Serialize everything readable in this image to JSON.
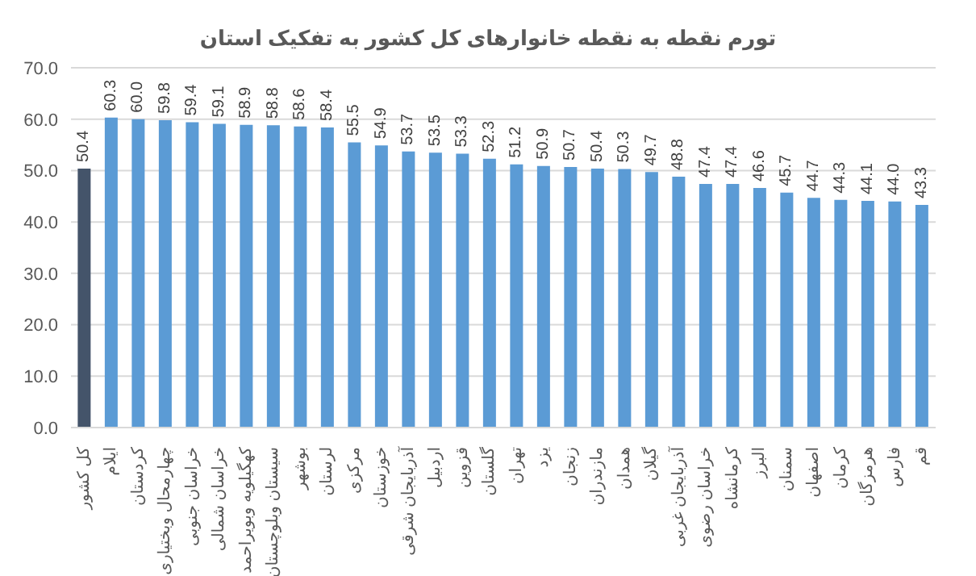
{
  "chart_data": {
    "type": "bar",
    "title": "تورم  نقطه به نقطه خانوارهای کل کشور به تفکیک استان",
    "categories": [
      "کل کشور",
      "ایلام",
      "کردستان",
      "چهارمحال وبختیاری",
      "خراسان جنوبی",
      "خراسان شمالی",
      "کهگیلویه وبویراحمد",
      "سیستان وبلوچستان",
      "بوشهر",
      "لرستان",
      "مرکزی",
      "خوزستان",
      "آذربایجان شرقی",
      "اردبیل",
      "قزوین",
      "گلستان",
      "تهران",
      "یزد",
      "زنجان",
      "مازندران",
      "همدان",
      "گیلان",
      "آذربایجان غربی",
      "خراسان رضوی",
      "کرمانشاه",
      "البرز",
      "سمنان",
      "اصفهان",
      "کرمان",
      "هرمزگان",
      "فارس",
      "قم"
    ],
    "values": [
      50.4,
      60.3,
      60.0,
      59.8,
      59.4,
      59.1,
      58.9,
      58.8,
      58.6,
      58.4,
      55.5,
      54.9,
      53.7,
      53.5,
      53.3,
      52.3,
      51.2,
      50.9,
      50.7,
      50.4,
      50.3,
      49.7,
      48.8,
      47.4,
      47.4,
      46.6,
      45.7,
      44.7,
      44.3,
      44.1,
      44.0,
      43.3
    ],
    "value_labels": [
      "50.4",
      "60.3",
      "60.0",
      "59.8",
      "59.4",
      "59.1",
      "58.9",
      "58.8",
      "58.6",
      "58.4",
      "55.5",
      "54.9",
      "53.7",
      "53.5",
      "53.3",
      "52.3",
      "51.2",
      "50.9",
      "50.7",
      "50.4",
      "50.3",
      "49.7",
      "48.8",
      "47.4",
      "47.4",
      "46.6",
      "45.7",
      "44.7",
      "44.3",
      "44.1",
      "44.0",
      "43.3"
    ],
    "colors": [
      "#44546a",
      "#5b9bd5",
      "#5b9bd5",
      "#5b9bd5",
      "#5b9bd5",
      "#5b9bd5",
      "#5b9bd5",
      "#5b9bd5",
      "#5b9bd5",
      "#5b9bd5",
      "#5b9bd5",
      "#5b9bd5",
      "#5b9bd5",
      "#5b9bd5",
      "#5b9bd5",
      "#5b9bd5",
      "#5b9bd5",
      "#5b9bd5",
      "#5b9bd5",
      "#5b9bd5",
      "#5b9bd5",
      "#5b9bd5",
      "#5b9bd5",
      "#5b9bd5",
      "#5b9bd5",
      "#5b9bd5",
      "#5b9bd5",
      "#5b9bd5",
      "#5b9bd5",
      "#5b9bd5",
      "#5b9bd5",
      "#5b9bd5"
    ],
    "ylim": [
      0,
      70
    ],
    "yticks": [
      {
        "value": 0,
        "label": "0.0"
      },
      {
        "value": 10,
        "label": "10.0"
      },
      {
        "value": 20,
        "label": "20.0"
      },
      {
        "value": 30,
        "label": "30.0"
      },
      {
        "value": 40,
        "label": "40.0"
      },
      {
        "value": 50,
        "label": "50.0"
      },
      {
        "value": 60,
        "label": "60.0"
      },
      {
        "value": 70,
        "label": "70.0"
      }
    ],
    "grid": "y",
    "legend": false
  }
}
